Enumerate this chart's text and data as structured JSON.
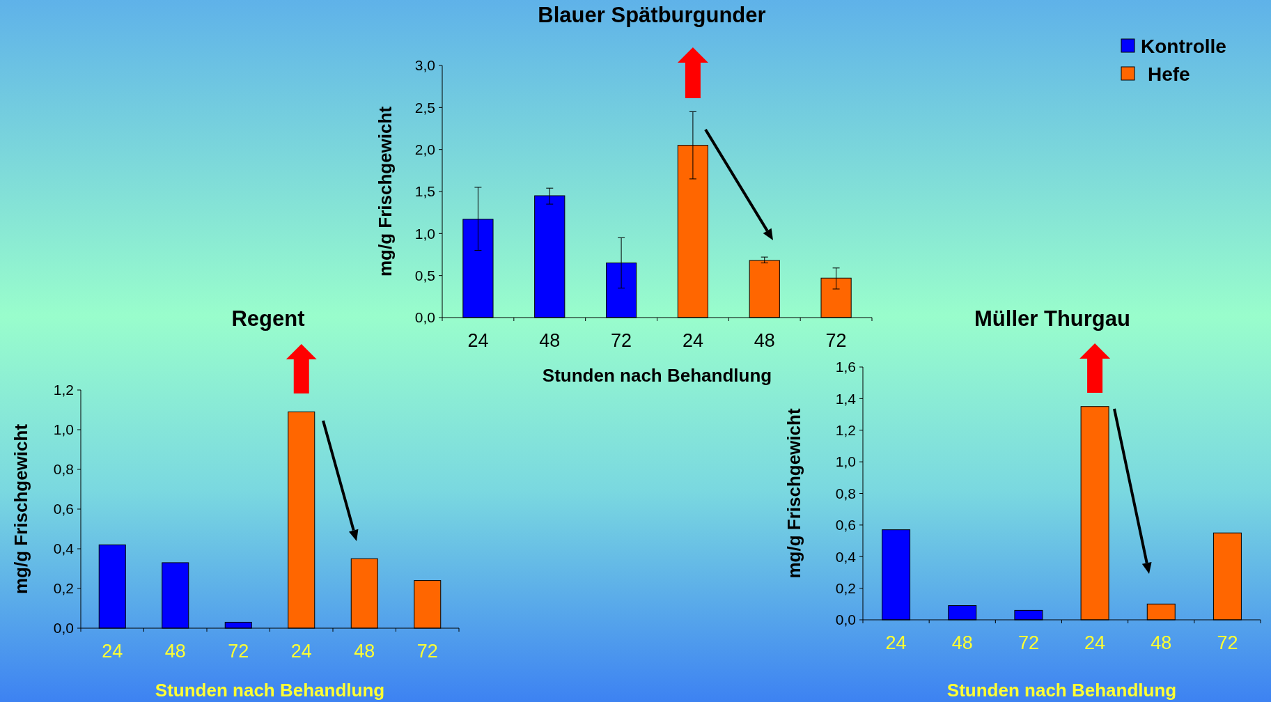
{
  "chart_data": [
    {
      "type": "bar",
      "title": "Blauer Spätburgunder",
      "xlabel": "Stunden nach Behandlung",
      "ylabel": "mg/g Frischgewicht",
      "categories": [
        "24",
        "48",
        "72",
        "24",
        "48",
        "72"
      ],
      "legend": "top right",
      "ylim": [
        0,
        3
      ],
      "yticks": [
        {
          "value": 0,
          "label": "0,0"
        },
        {
          "value": 0.5,
          "label": "0,5"
        },
        {
          "value": 1,
          "label": "1,0"
        },
        {
          "value": 1.5,
          "label": "1,5"
        },
        {
          "value": 2,
          "label": "2,0"
        },
        {
          "value": 2.5,
          "label": "2,5"
        },
        {
          "value": 3,
          "label": "3,0"
        }
      ],
      "series": [
        {
          "name": "Kontrolle",
          "color": "#0000ff",
          "values": [
            1.17,
            1.45,
            0.65,
            null,
            null,
            null
          ],
          "errors": [
            [
              0.8,
              1.55
            ],
            [
              1.35,
              1.54
            ],
            [
              0.35,
              0.95
            ],
            null,
            null,
            null
          ]
        },
        {
          "name": "Hefe",
          "color": "#ff6600",
          "values": [
            null,
            null,
            null,
            2.05,
            0.68,
            0.47
          ],
          "errors": [
            null,
            null,
            null,
            [
              1.65,
              2.45
            ],
            [
              0.65,
              0.72
            ],
            [
              0.34,
              0.59
            ]
          ]
        }
      ]
    },
    {
      "type": "bar",
      "title": "Regent",
      "xlabel": "Stunden nach Behandlung",
      "ylabel": "mg/g Frischgewicht",
      "categories": [
        "24",
        "48",
        "72",
        "24",
        "48",
        "72"
      ],
      "ylim": [
        0,
        1.2
      ],
      "yticks": [
        {
          "value": 0,
          "label": "0,0"
        },
        {
          "value": 0.2,
          "label": "0,2"
        },
        {
          "value": 0.4,
          "label": "0,4"
        },
        {
          "value": 0.6,
          "label": "0,6"
        },
        {
          "value": 0.8,
          "label": "0,8"
        },
        {
          "value": 1,
          "label": "1,0"
        },
        {
          "value": 1.2,
          "label": "1,2"
        }
      ],
      "series": [
        {
          "color": "#0000ff",
          "values": [
            0.42,
            0.33,
            0.03,
            null,
            null,
            null
          ]
        },
        {
          "color": "#ff6600",
          "values": [
            null,
            null,
            null,
            1.09,
            0.35,
            0.24
          ]
        }
      ]
    },
    {
      "type": "bar",
      "title": "Müller Thurgau",
      "xlabel": "Stunden nach Behandlung",
      "ylabel": "mg/g Frischgewicht",
      "categories": [
        "24",
        "48",
        "72",
        "24",
        "48",
        "72"
      ],
      "ylim": [
        0,
        1.6
      ],
      "yticks": [
        {
          "value": 0,
          "label": "0,0"
        },
        {
          "value": 0.2,
          "label": "0,2"
        },
        {
          "value": 0.4,
          "label": "0,4"
        },
        {
          "value": 0.6,
          "label": "0,6"
        },
        {
          "value": 0.8,
          "label": "0,8"
        },
        {
          "value": 1,
          "label": "1,0"
        },
        {
          "value": 1.2,
          "label": "1,2"
        },
        {
          "value": 1.4,
          "label": "1,4"
        },
        {
          "value": 1.6,
          "label": "1,6"
        }
      ],
      "series": [
        {
          "color": "#0000ff",
          "values": [
            0.57,
            0.09,
            0.06,
            null,
            null,
            null
          ]
        },
        {
          "color": "#ff6600",
          "values": [
            null,
            null,
            null,
            1.35,
            0.1,
            0.55
          ]
        }
      ]
    }
  ]
}
